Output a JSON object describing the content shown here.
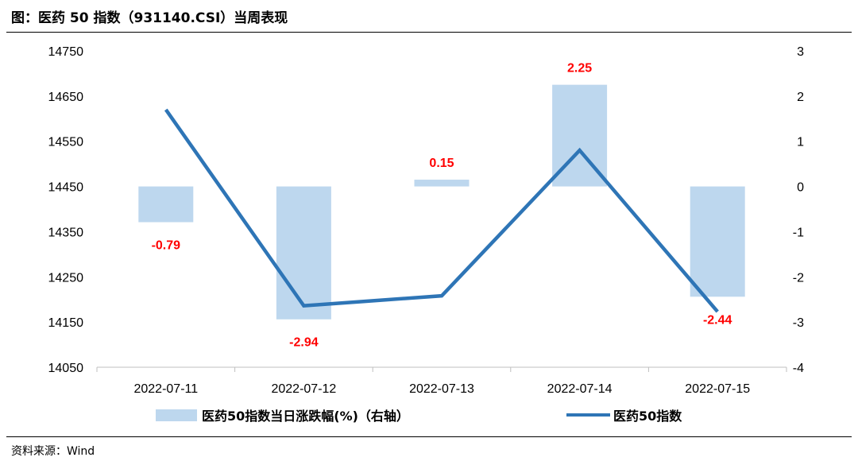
{
  "title": "图：医药 50 指数（931140.CSI）当周表现",
  "source": "资料来源：Wind",
  "chart_data": {
    "type": "bar+line",
    "categories": [
      "2022-07-11",
      "2022-07-12",
      "2022-07-13",
      "2022-07-14",
      "2022-07-15"
    ],
    "series": [
      {
        "name": "医药50指数当日涨跌幅(%)（右轴）",
        "type": "bar",
        "axis": "right",
        "color": "#bdd7ee",
        "values": [
          -0.79,
          -2.94,
          0.15,
          2.25,
          -2.44
        ],
        "labels": [
          "-0.79",
          "-2.94",
          "0.15",
          "2.25",
          "-2.44"
        ]
      },
      {
        "name": "医药50指数",
        "type": "line",
        "axis": "left",
        "color": "#2e75b6",
        "values": [
          14620,
          14186,
          14208,
          14530,
          14173
        ]
      }
    ],
    "left_axis": {
      "min": 14050,
      "max": 14750,
      "ticks": [
        14750,
        14650,
        14550,
        14450,
        14350,
        14250,
        14150,
        14050
      ]
    },
    "right_axis": {
      "min": -4,
      "max": 3,
      "ticks": [
        3,
        2,
        1,
        0,
        -1,
        -2,
        -3,
        -4
      ]
    },
    "label_color": "#ff0000",
    "legend_position": "bottom",
    "grid": false
  }
}
